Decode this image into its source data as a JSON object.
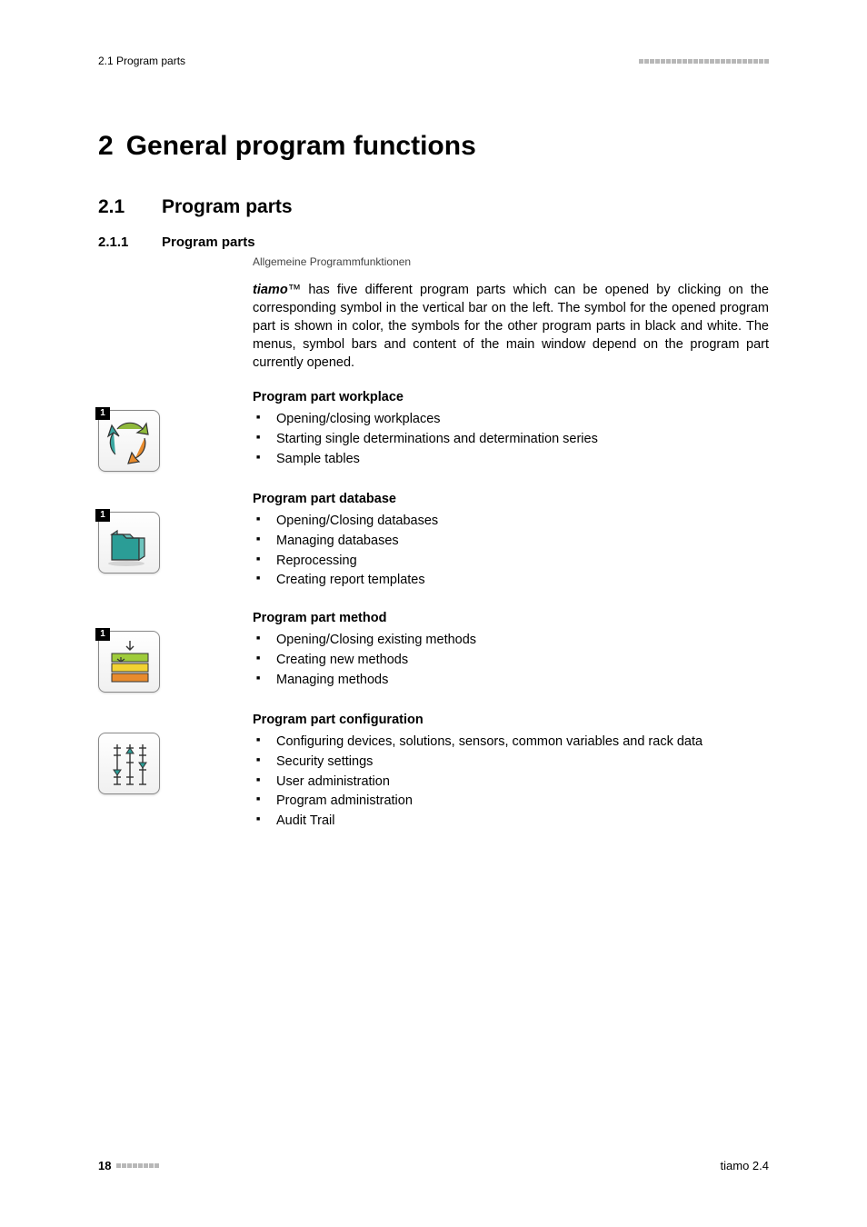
{
  "header": {
    "left": "2.1 Program parts",
    "square_count": 24,
    "square_color": "#b8b8b8"
  },
  "chapter": {
    "number": "2",
    "title": "General program functions"
  },
  "section": {
    "number": "2.1",
    "title": "Program parts"
  },
  "subsection": {
    "number": "2.1.1",
    "title": "Program parts",
    "subtitle": "Allgemeine Programmfunktionen"
  },
  "intro": {
    "bold": "tiamo",
    "tm": "™",
    "rest": " has five different program parts which can be opened by clicking on the corresponding symbol in the vertical bar on the left. The symbol for the opened program part is shown in color, the symbols for the other program parts in black and white. The menus, symbol bars and content of the main window depend on the program part currently opened."
  },
  "parts": [
    {
      "heading": "Program part workplace",
      "badge": "1",
      "icon": "workplace",
      "bullets": [
        "Opening/closing workplaces",
        "Starting single determinations and determination series",
        "Sample tables"
      ]
    },
    {
      "heading": "Program part database",
      "badge": "1",
      "icon": "database",
      "bullets": [
        "Opening/Closing databases",
        "Managing databases",
        "Reprocessing",
        "Creating report templates"
      ]
    },
    {
      "heading": "Program part method",
      "badge": "1",
      "icon": "method",
      "bullets": [
        "Opening/Closing existing methods",
        "Creating new methods",
        "Managing methods"
      ]
    },
    {
      "heading": "Program part configuration",
      "badge": null,
      "icon": "configuration",
      "bullets": [
        "Configuring devices, solutions, sensors, common variables and rack data",
        "Security settings",
        "User administration",
        "Program administration",
        "Audit Trail"
      ]
    }
  ],
  "footer": {
    "page": "18",
    "square_count": 8,
    "right": "tiamo 2.4"
  },
  "colors": {
    "arrow_green": "#8fb93c",
    "arrow_orange": "#e88b2d",
    "arrow_teal": "#3aa6a0",
    "folder_teal": "#2b9d96",
    "folder_light": "#6fc4be",
    "bar_green": "#9fcc3b",
    "bar_yellow": "#f2d233",
    "bar_orange": "#e88b2d",
    "slider_teal": "#2b9d96",
    "outline": "#333333"
  }
}
